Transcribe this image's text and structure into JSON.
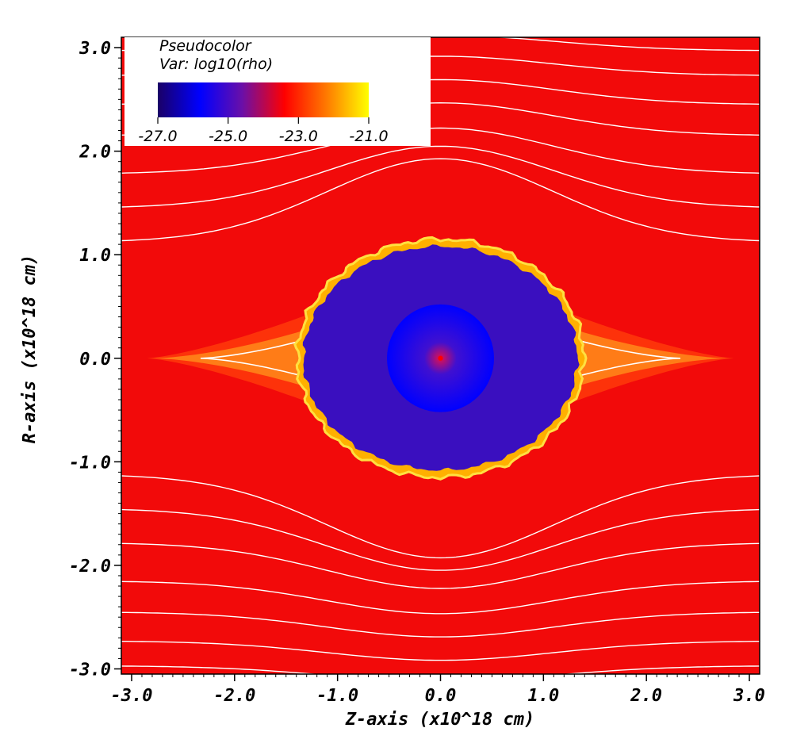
{
  "chart_data": {
    "type": "heatmap",
    "title": "Pseudocolor",
    "subtitle": "Var: log10(rho)",
    "xlabel": "Z-axis (x10^18 cm)",
    "ylabel": "R-axis (x10^18 cm)",
    "xlim": [
      -3.1,
      3.1
    ],
    "ylim": [
      -3.05,
      3.1
    ],
    "x_ticks": [
      -3.0,
      -2.0,
      -1.0,
      0.0,
      1.0,
      2.0,
      3.0
    ],
    "x_tick_labels": [
      "-3.0",
      "-2.0",
      "-1.0",
      "0.0",
      "1.0",
      "2.0",
      "3.0"
    ],
    "y_ticks": [
      3.0,
      2.0,
      1.0,
      0.0,
      -1.0,
      -2.0,
      -3.0
    ],
    "y_tick_labels": [
      "3.0",
      "2.0",
      "1.0",
      "0.0",
      "-1.0",
      "-2.0",
      "-3.0"
    ],
    "colorbar": {
      "range": [
        -27.0,
        -21.0
      ],
      "ticks": [
        -27.0,
        -25.0,
        -23.0,
        -21.0
      ],
      "tick_labels": [
        "-27.0",
        "-25.0",
        "-23.0",
        "-21.0"
      ],
      "colormap": [
        "#1a0066",
        "#0000ff",
        "#6a0fa8",
        "#ff0000",
        "#ff7a00",
        "#ffff00"
      ]
    },
    "ambient_value": -23.0,
    "bubble": {
      "center": [
        0.0,
        0.0
      ],
      "radius_z": 1.33,
      "radius_r": 1.08,
      "value": -25.5,
      "color": "#3a0fbf"
    },
    "core": {
      "center": [
        0.0,
        0.0
      ],
      "radius": 0.52,
      "value": -25.0,
      "color": "#0000ff",
      "center_color": "#ff0000"
    },
    "shock_wings": {
      "tip_z": 2.85,
      "half_width": 0.05,
      "color": "#ff8c00"
    },
    "streamline_color": "#ffffff",
    "streamline_offsets": [
      2.97,
      2.73,
      2.45,
      2.15,
      1.78,
      1.45,
      1.12,
      -1.12,
      -1.45,
      -1.78,
      -2.15,
      -2.45,
      -2.73,
      -2.97
    ],
    "ambient_color": "#f20a0a"
  }
}
